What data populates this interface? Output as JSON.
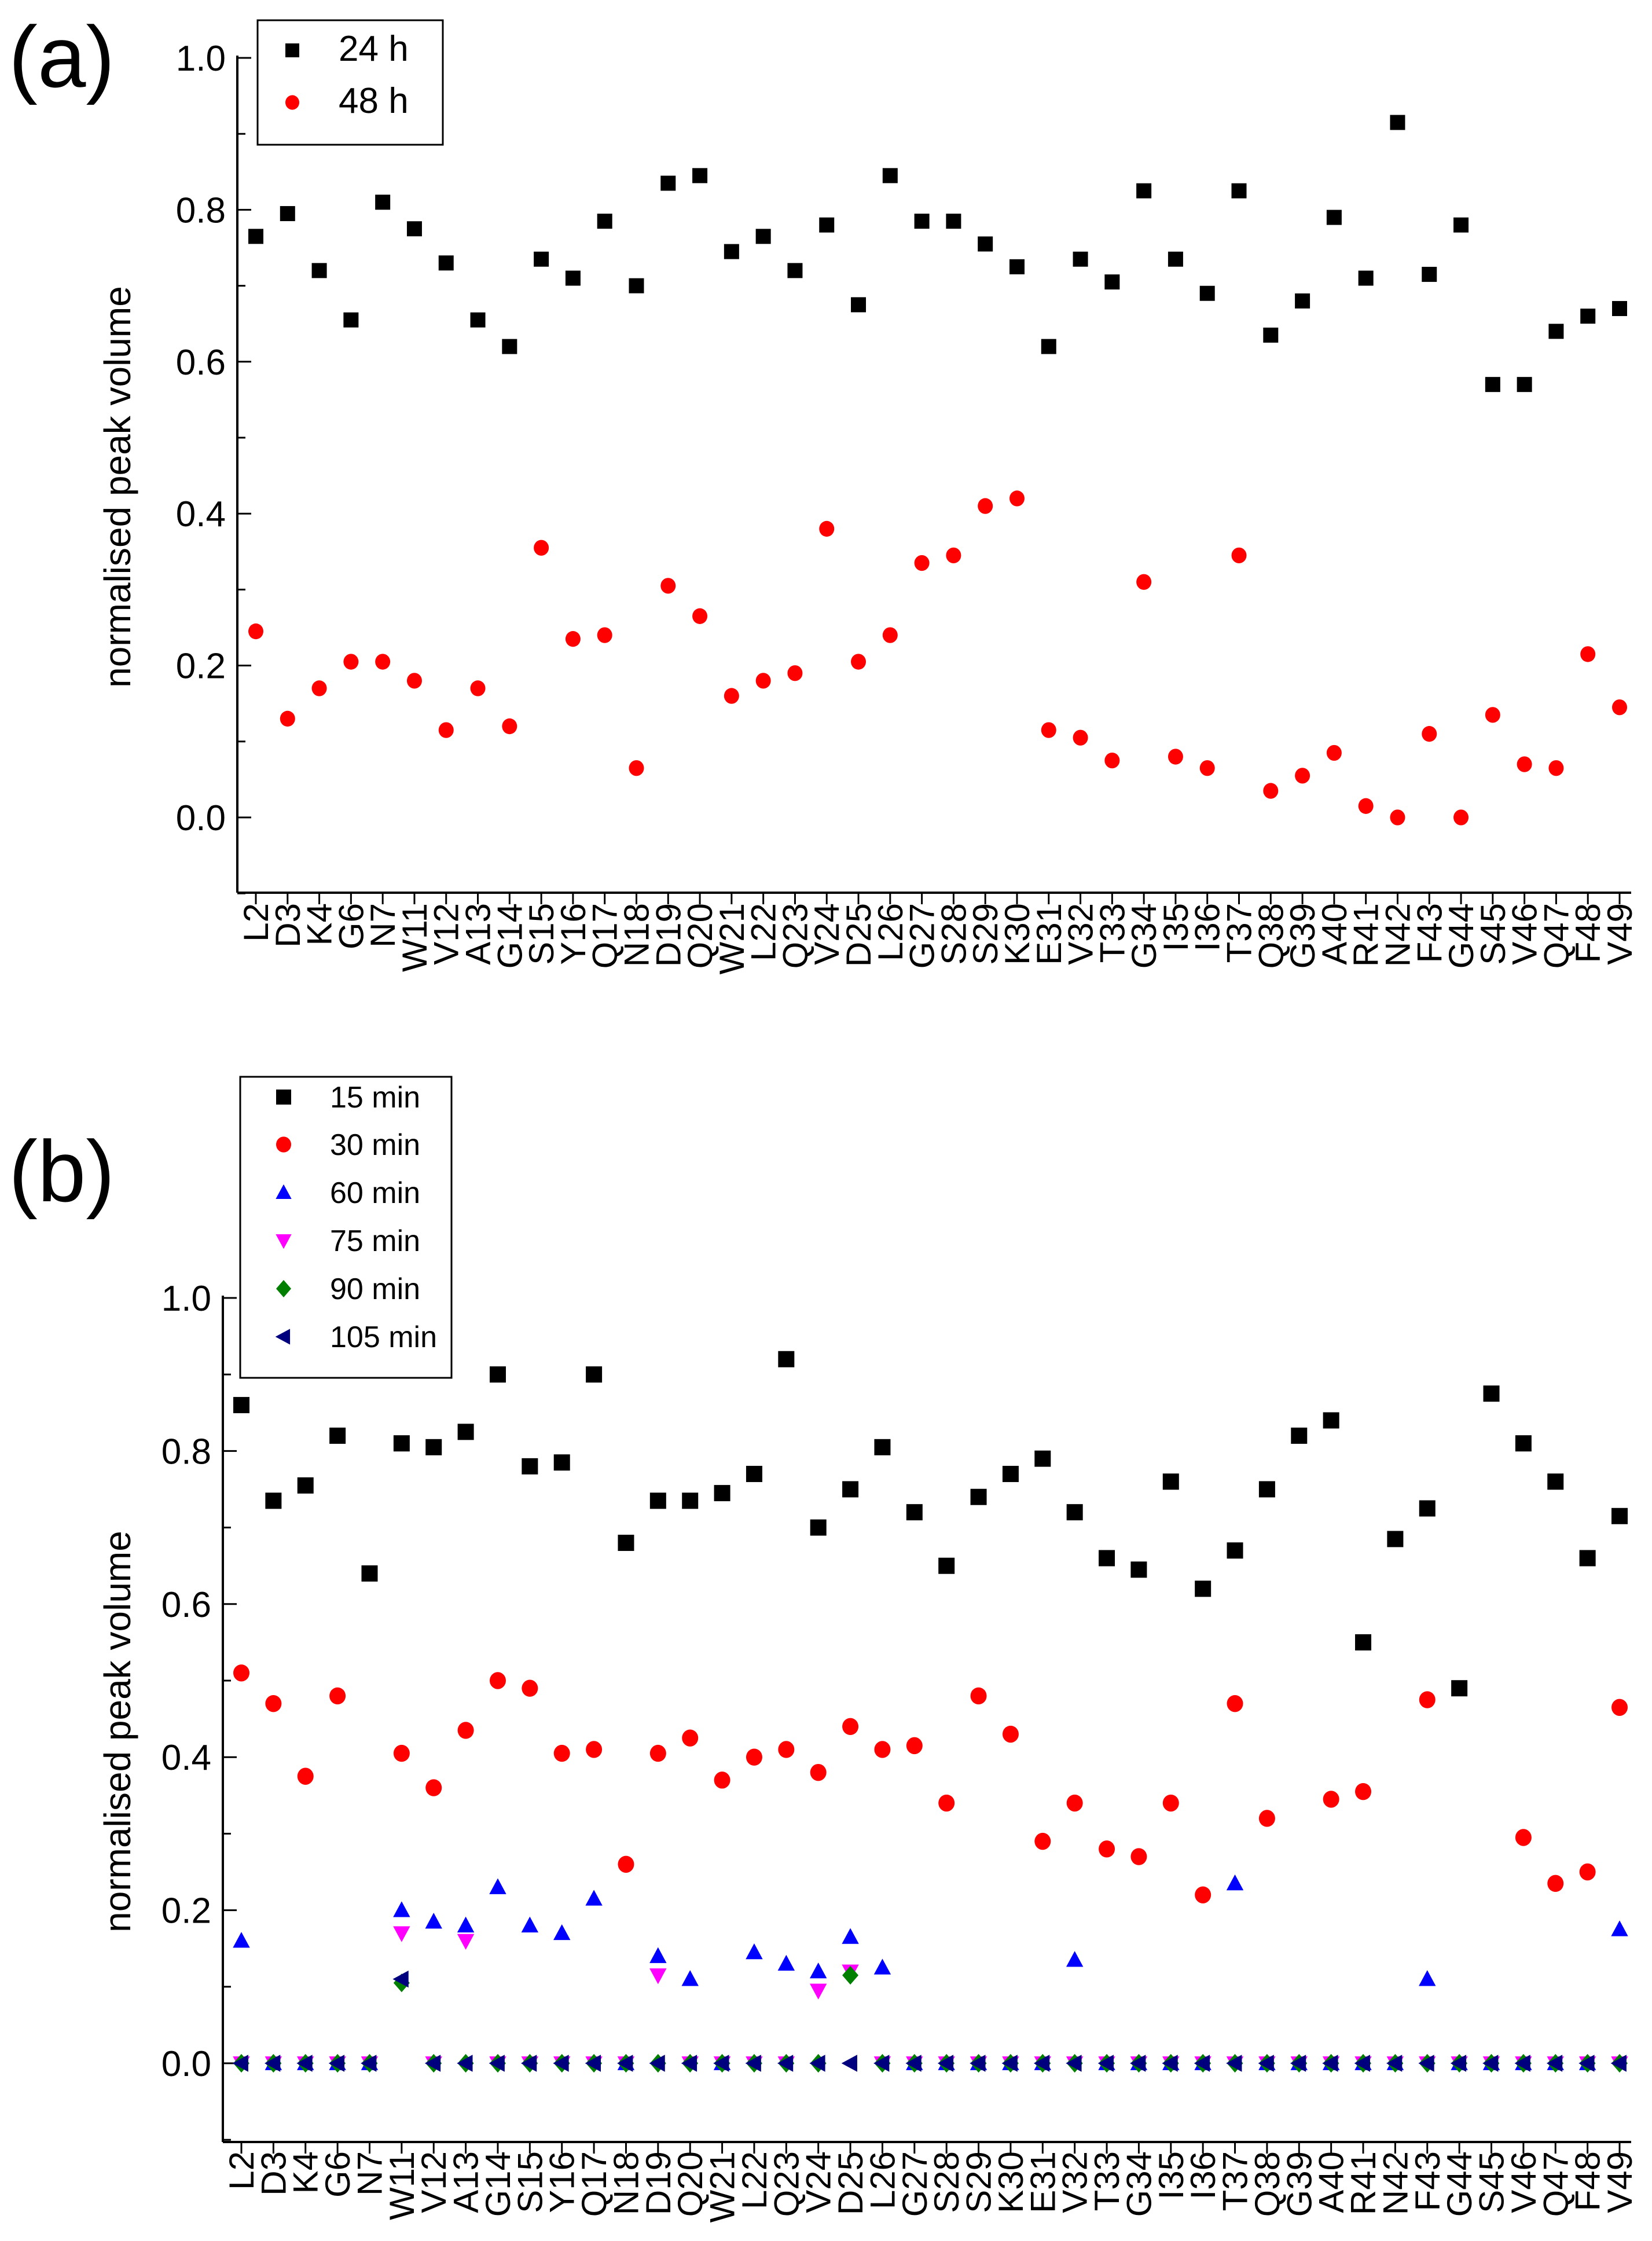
{
  "colors": {
    "black": "#000000",
    "red": "#ff0000",
    "blue": "#0000ff",
    "magenta": "#ff00ff",
    "green": "#007f00",
    "navy": "#00007f"
  },
  "chart_data": [
    {
      "type": "scatter",
      "panel_label": "(a)",
      "title": "",
      "xlabel": "",
      "ylabel": "normalised peak volume",
      "ylim": [
        -0.1,
        1.0
      ],
      "y_ticks": [
        "0.0",
        "0.2",
        "0.4",
        "0.6",
        "0.8",
        "1.0"
      ],
      "grid": false,
      "legend_position": "top-left",
      "categories": [
        "L2",
        "D3",
        "K4",
        "G6",
        "N7",
        "W11",
        "V12",
        "A13",
        "G14",
        "S15",
        "Y16",
        "Q17",
        "N18",
        "D19",
        "Q20",
        "W21",
        "L22",
        "Q23",
        "V24",
        "D25",
        "L26",
        "G27",
        "S28",
        "S29",
        "K30",
        "E31",
        "V32",
        "T33",
        "G34",
        "I35",
        "I36",
        "T37",
        "Q38",
        "G39",
        "A40",
        "R41",
        "N42",
        "F43",
        "G44",
        "S45",
        "V46",
        "Q47",
        "F48",
        "V49"
      ],
      "series": [
        {
          "name": "24 h",
          "marker": "square",
          "color": "#000000",
          "values": [
            0.765,
            0.795,
            0.72,
            0.655,
            0.81,
            0.775,
            0.73,
            0.655,
            0.62,
            0.735,
            0.71,
            0.785,
            0.7,
            0.835,
            0.845,
            0.745,
            0.765,
            0.72,
            0.78,
            0.675,
            0.845,
            0.785,
            0.785,
            0.755,
            0.725,
            0.62,
            0.735,
            0.705,
            0.825,
            0.735,
            0.69,
            0.825,
            0.635,
            0.68,
            0.79,
            0.71,
            0.915,
            0.715,
            0.78,
            0.57,
            0.57,
            0.64,
            0.66,
            0.67
          ]
        },
        {
          "name": "48 h",
          "marker": "circle",
          "color": "#ff0000",
          "values": [
            0.245,
            0.13,
            0.17,
            0.205,
            0.205,
            0.18,
            0.115,
            0.17,
            0.12,
            0.355,
            0.235,
            0.24,
            0.065,
            0.305,
            0.265,
            0.16,
            0.18,
            0.19,
            0.38,
            0.205,
            0.24,
            0.335,
            0.345,
            0.41,
            0.42,
            0.115,
            0.105,
            0.075,
            0.31,
            0.08,
            0.065,
            0.345,
            0.035,
            0.055,
            0.085,
            0.015,
            0.0,
            0.11,
            0.0,
            0.135,
            0.07,
            0.065,
            0.215,
            0.145
          ]
        }
      ]
    },
    {
      "type": "scatter",
      "panel_label": "(b)",
      "title": "",
      "xlabel": "",
      "ylabel": "normalised peak volume",
      "ylim": [
        -0.1,
        1.0
      ],
      "y_ticks": [
        "0.0",
        "0.2",
        "0.4",
        "0.6",
        "0.8",
        "1.0"
      ],
      "grid": false,
      "legend_position": "top-left",
      "categories": [
        "L2",
        "D3",
        "K4",
        "G6",
        "N7",
        "W11",
        "V12",
        "A13",
        "G14",
        "S15",
        "Y16",
        "Q17",
        "N18",
        "D19",
        "Q20",
        "W21",
        "L22",
        "Q23",
        "V24",
        "D25",
        "L26",
        "G27",
        "S28",
        "S29",
        "K30",
        "E31",
        "V32",
        "T33",
        "G34",
        "I35",
        "I36",
        "T37",
        "Q38",
        "G39",
        "A40",
        "R41",
        "N42",
        "F43",
        "G44",
        "S45",
        "V46",
        "Q47",
        "F48",
        "V49"
      ],
      "series": [
        {
          "name": "15 min",
          "marker": "square",
          "color": "#000000",
          "values": [
            0.86,
            0.735,
            0.755,
            0.82,
            0.64,
            0.81,
            0.805,
            0.825,
            0.9,
            0.78,
            0.785,
            0.9,
            0.68,
            0.735,
            0.735,
            0.745,
            0.77,
            0.92,
            0.7,
            0.75,
            0.805,
            0.72,
            0.65,
            0.74,
            0.77,
            0.79,
            0.72,
            0.66,
            0.645,
            0.76,
            0.62,
            0.67,
            0.75,
            0.82,
            0.84,
            0.55,
            0.685,
            0.725,
            0.49,
            0.875,
            0.81,
            0.76,
            0.66,
            0.715
          ]
        },
        {
          "name": "30 min",
          "marker": "circle",
          "color": "#ff0000",
          "values": [
            0.51,
            0.47,
            0.375,
            0.48,
            null,
            0.405,
            0.36,
            0.435,
            0.5,
            0.49,
            0.405,
            0.41,
            0.26,
            0.405,
            0.425,
            0.37,
            0.4,
            0.41,
            0.38,
            0.44,
            0.41,
            0.415,
            0.34,
            0.48,
            0.43,
            0.29,
            0.34,
            0.28,
            0.27,
            0.34,
            0.22,
            0.47,
            0.32,
            null,
            0.345,
            0.355,
            null,
            0.475,
            null,
            null,
            0.295,
            0.235,
            0.25,
            0.465
          ]
        },
        {
          "name": "60 min",
          "marker": "triangle-up",
          "color": "#0000ff",
          "values": [
            0.16,
            0,
            0,
            0,
            0,
            0.2,
            0.185,
            0.18,
            0.23,
            0.18,
            0.17,
            0.215,
            0,
            0.14,
            0.11,
            0,
            0.145,
            0.13,
            0.12,
            0.165,
            0.125,
            0,
            0,
            0,
            0,
            0,
            0.135,
            0,
            0,
            0,
            0,
            0.235,
            0,
            0,
            0,
            0,
            0,
            0.11,
            0,
            0,
            0,
            0,
            0,
            0.175
          ]
        },
        {
          "name": "75 min",
          "marker": "triangle-down",
          "color": "#ff00ff",
          "values": [
            0,
            0,
            0,
            0,
            0,
            0.17,
            0,
            0.16,
            0,
            0,
            0,
            0,
            0,
            0.115,
            0,
            0,
            0,
            0,
            0.095,
            0.12,
            0,
            0,
            0,
            0,
            0,
            0,
            0,
            0,
            0,
            0,
            0,
            0,
            0,
            0,
            0,
            0,
            0,
            0,
            0,
            0,
            0,
            0,
            0,
            0
          ]
        },
        {
          "name": "90 min",
          "marker": "diamond",
          "color": "#007f00",
          "values": [
            0,
            0,
            0,
            0,
            0,
            0.105,
            0,
            0,
            0,
            0,
            0,
            0,
            0,
            0,
            0,
            0,
            0,
            0,
            0,
            0.115,
            0,
            0,
            0,
            0,
            0,
            0,
            0,
            0,
            0,
            0,
            0,
            0,
            0,
            0,
            0,
            0,
            0,
            0,
            0,
            0,
            0,
            0,
            0,
            0
          ]
        },
        {
          "name": "105 min",
          "marker": "triangle-left",
          "color": "#00007f",
          "values": [
            0,
            0,
            0,
            0,
            0,
            0.11,
            0,
            0,
            0,
            0,
            0,
            0,
            0,
            0,
            0,
            0,
            0,
            0,
            0,
            0,
            0,
            0,
            0,
            0,
            0,
            0,
            0,
            0,
            0,
            0,
            0,
            0,
            0,
            0,
            0,
            0,
            0,
            0,
            0,
            0,
            0,
            0,
            0,
            0
          ]
        }
      ]
    }
  ]
}
